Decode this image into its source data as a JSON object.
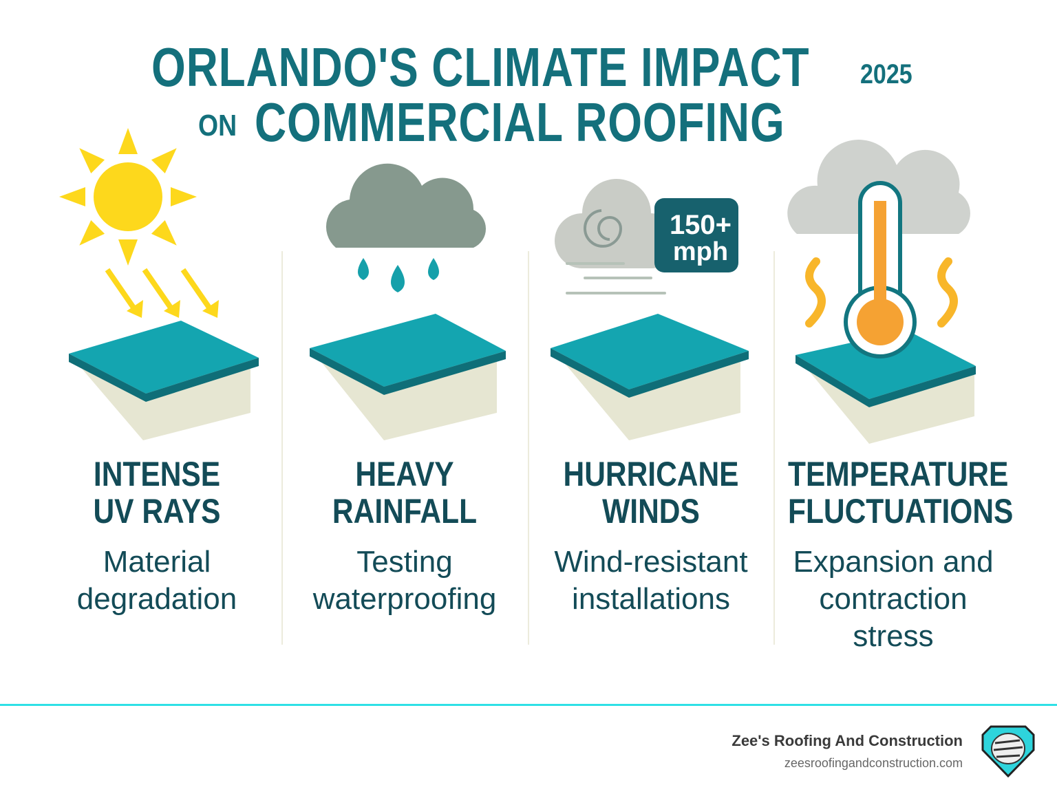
{
  "title": {
    "line1": "ORLANDO'S CLIMATE IMPACT",
    "year": "2025",
    "on": "ON",
    "line2": "COMMERCIAL ROOFING"
  },
  "columns": [
    {
      "heading": [
        "INTENSE",
        "UV RAYS"
      ],
      "description": [
        "Material",
        "degradation"
      ],
      "icon": "sun-icon"
    },
    {
      "heading": [
        "HEAVY",
        "RAINFALL"
      ],
      "description": [
        "Testing",
        "waterproofing"
      ],
      "icon": "rain-cloud-icon"
    },
    {
      "heading": [
        "HURRICANE",
        "WINDS"
      ],
      "description": [
        "Wind-resistant",
        "installations"
      ],
      "icon": "wind-icon",
      "badge": [
        "150+",
        "mph"
      ]
    },
    {
      "heading": [
        "TEMPERATURE",
        "FLUCTUATIONS"
      ],
      "description": [
        "Expansion and",
        "contraction",
        "stress"
      ],
      "icon": "thermometer-icon"
    }
  ],
  "footer": {
    "brand": "Zee's Roofing And Construction",
    "url": "zeesroofingandconstruction.com"
  },
  "colors": {
    "title": "#14707c",
    "roof": "#14a5b0",
    "accent_line": "#2ee0e6"
  }
}
